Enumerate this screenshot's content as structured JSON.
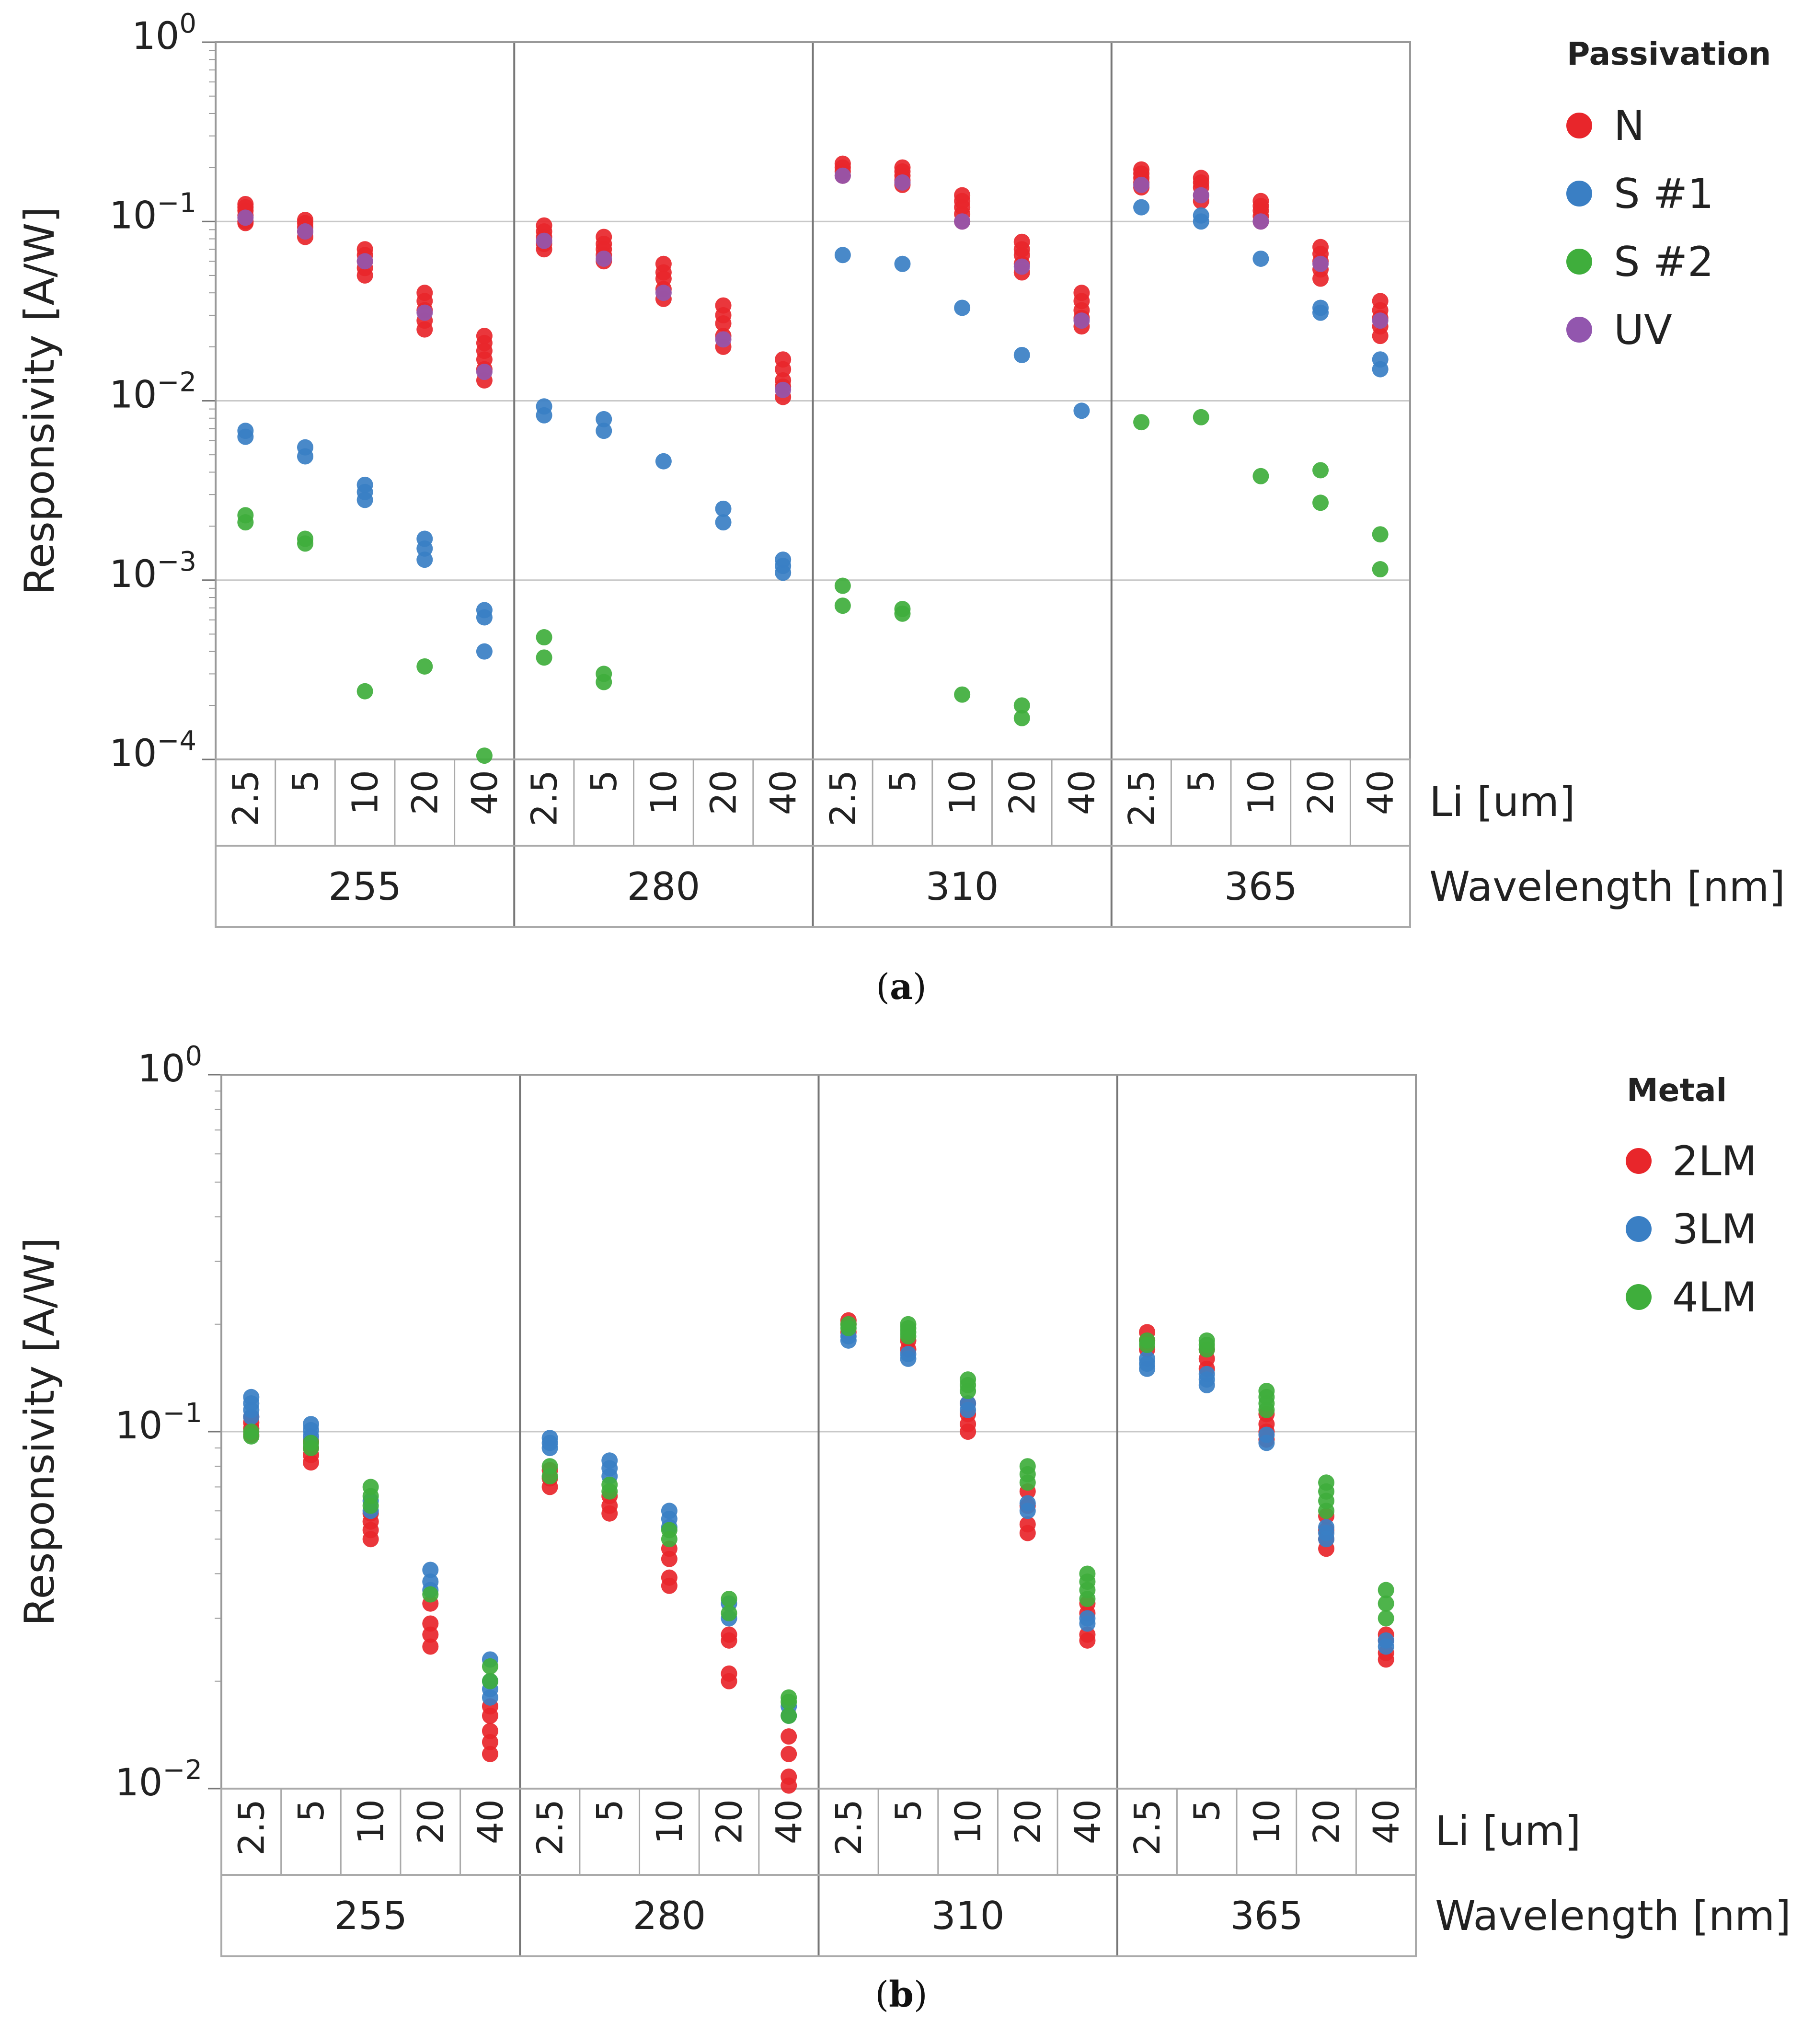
{
  "chart_data": [
    {
      "id": "a",
      "type": "scatter",
      "caption_letter": "a",
      "ylabel": "Responsivity [A/W]",
      "yscale": "log",
      "ylim": [
        0.0001,
        1
      ],
      "ytick_bases": [
        "10",
        "10",
        "10",
        "10",
        "10"
      ],
      "ytick_exps": [
        "0",
        "−1",
        "−2",
        "−3",
        "−4"
      ],
      "ytick_values": [
        1,
        0.1,
        0.01,
        0.001,
        0.0001
      ],
      "grid": true,
      "x_level1_label": "Li [um]",
      "x_level2_label": "Wavelength [nm]",
      "li_values": [
        "2.5",
        "5",
        "10",
        "20",
        "40"
      ],
      "wavelengths": [
        "255",
        "280",
        "310",
        "365"
      ],
      "legend": {
        "title": "Passivation",
        "position": "right"
      },
      "series": [
        {
          "name": "N",
          "color": "#e8262b",
          "values": [
            [
              [
                0.1,
                0.108,
                0.115,
                0.12,
                0.125,
                0.098
              ],
              [
                0.082,
                0.088,
                0.093,
                0.098,
                0.102
              ],
              [
                0.05,
                0.055,
                0.06,
                0.065,
                0.07
              ],
              [
                0.025,
                0.028,
                0.032,
                0.036,
                0.04
              ],
              [
                0.013,
                0.015,
                0.017,
                0.019,
                0.021,
                0.023
              ]
            ],
            [
              [
                0.07,
                0.075,
                0.082,
                0.088,
                0.095
              ],
              [
                0.06,
                0.065,
                0.07,
                0.075,
                0.082
              ],
              [
                0.037,
                0.042,
                0.048,
                0.052,
                0.058
              ],
              [
                0.02,
                0.023,
                0.027,
                0.03,
                0.034
              ],
              [
                0.0105,
                0.012,
                0.013,
                0.015,
                0.017
              ]
            ],
            [
              [
                0.18,
                0.19,
                0.2,
                0.21
              ],
              [
                0.16,
                0.17,
                0.18,
                0.19,
                0.2
              ],
              [
                0.1,
                0.11,
                0.12,
                0.13,
                0.14
              ],
              [
                0.052,
                0.058,
                0.065,
                0.07,
                0.077
              ],
              [
                0.026,
                0.029,
                0.032,
                0.036,
                0.04
              ]
            ],
            [
              [
                0.155,
                0.165,
                0.175,
                0.185,
                0.195
              ],
              [
                0.13,
                0.14,
                0.155,
                0.165,
                0.175
              ],
              [
                0.1,
                0.107,
                0.115,
                0.122,
                0.13
              ],
              [
                0.048,
                0.054,
                0.06,
                0.066,
                0.072
              ],
              [
                0.023,
                0.026,
                0.029,
                0.032,
                0.036
              ]
            ]
          ]
        },
        {
          "name": "S #1",
          "color": "#3a7fc4",
          "values": [
            [
              [
                0.0063,
                0.0068
              ],
              [
                0.0049,
                0.0055
              ],
              [
                0.0028,
                0.0031,
                0.0034
              ],
              [
                0.0013,
                0.0015,
                0.0017
              ],
              [
                0.0004,
                0.00062,
                0.00068
              ]
            ],
            [
              [
                0.0083,
                0.0093
              ],
              [
                0.0068,
                0.0079
              ],
              [
                0.0046
              ],
              [
                0.0021,
                0.0025
              ],
              [
                0.0011,
                0.0012,
                0.0013
              ]
            ],
            [
              [
                0.065
              ],
              [
                0.058
              ],
              [
                0.033
              ],
              [
                0.018
              ],
              [
                0.0088
              ]
            ],
            [
              [
                0.12
              ],
              [
                0.1,
                0.108
              ],
              [
                0.062
              ],
              [
                0.031,
                0.033
              ],
              [
                0.015,
                0.017
              ]
            ]
          ]
        },
        {
          "name": "S #2",
          "color": "#3fae3c",
          "values": [
            [
              [
                0.0021,
                0.0023
              ],
              [
                0.0016,
                0.0017
              ],
              [
                0.00024
              ],
              [
                0.00033
              ],
              [
                0.000105
              ]
            ],
            [
              [
                0.00037,
                0.00048
              ],
              [
                0.00027,
                0.0003
              ],
              [],
              [],
              []
            ],
            [
              [
                0.00072,
                0.00093
              ],
              [
                0.00065,
                0.00069
              ],
              [
                0.00023
              ],
              [
                0.00017,
                0.0002
              ],
              []
            ],
            [
              [
                0.0076
              ],
              [
                0.0081
              ],
              [
                0.0038
              ],
              [
                0.0027,
                0.0041
              ],
              [
                0.00115,
                0.0018
              ]
            ]
          ]
        },
        {
          "name": "UV",
          "color": "#9256ae",
          "values": [
            [
              [
                0.105
              ],
              [
                0.088
              ],
              [
                0.06
              ],
              [
                0.031
              ],
              [
                0.0145
              ]
            ],
            [
              [
                0.078
              ],
              [
                0.062
              ],
              [
                0.04
              ],
              [
                0.022
              ],
              [
                0.0115
              ]
            ],
            [
              [
                0.18
              ],
              [
                0.165
              ],
              [
                0.1
              ],
              [
                0.056
              ],
              [
                0.028
              ]
            ],
            [
              [
                0.16
              ],
              [
                0.14
              ],
              [
                0.1
              ],
              [
                0.058
              ],
              [
                0.028
              ]
            ]
          ]
        }
      ]
    },
    {
      "id": "b",
      "type": "scatter",
      "caption_letter": "b",
      "ylabel": "Responsivity [A/W]",
      "yscale": "log",
      "ylim": [
        0.01,
        1
      ],
      "ytick_bases": [
        "10",
        "10",
        "10"
      ],
      "ytick_exps": [
        "0",
        "−1",
        "−2"
      ],
      "ytick_values": [
        1,
        0.1,
        0.01
      ],
      "grid": true,
      "x_level1_label": "Li [um]",
      "x_level2_label": "Wavelength [nm]",
      "li_values": [
        "2.5",
        "5",
        "10",
        "20",
        "40"
      ],
      "wavelengths": [
        "255",
        "280",
        "310",
        "365"
      ],
      "legend": {
        "title": "Metal",
        "position": "right"
      },
      "series": [
        {
          "name": "2LM",
          "color": "#e8262b",
          "values": [
            [
              [
                0.098,
                0.102,
                0.106,
                0.11
              ],
              [
                0.082,
                0.086,
                0.09,
                0.094
              ],
              [
                0.05,
                0.053,
                0.056,
                0.059
              ],
              [
                0.025,
                0.027,
                0.029,
                0.033
              ],
              [
                0.0125,
                0.0135,
                0.0145,
                0.016,
                0.017
              ]
            ],
            [
              [
                0.07,
                0.074,
                0.078
              ],
              [
                0.059,
                0.062,
                0.066
              ],
              [
                0.037,
                0.039,
                0.044,
                0.047
              ],
              [
                0.02,
                0.021,
                0.026,
                0.027
              ],
              [
                0.0102,
                0.0108,
                0.0125,
                0.014
              ]
            ],
            [
              [
                0.19,
                0.2,
                0.205
              ],
              [
                0.17,
                0.18
              ],
              [
                0.1,
                0.105,
                0.112,
                0.12
              ],
              [
                0.052,
                0.055,
                0.062,
                0.068
              ],
              [
                0.026,
                0.027,
                0.031,
                0.033
              ]
            ],
            [
              [
                0.17,
                0.18,
                0.19
              ],
              [
                0.15,
                0.16,
                0.17
              ],
              [
                0.095,
                0.1,
                0.105,
                0.112
              ],
              [
                0.047,
                0.05,
                0.053,
                0.058
              ],
              [
                0.023,
                0.024,
                0.026,
                0.027
              ]
            ]
          ]
        },
        {
          "name": "3LM",
          "color": "#3a7fc4",
          "values": [
            [
              [
                0.11,
                0.115,
                0.12,
                0.125
              ],
              [
                0.097,
                0.101,
                0.105
              ],
              [
                0.06,
                0.064
              ],
              [
                0.036,
                0.038,
                0.041
              ],
              [
                0.018,
                0.019,
                0.02,
                0.023
              ]
            ],
            [
              [
                0.09,
                0.093,
                0.096
              ],
              [
                0.075,
                0.079,
                0.083
              ],
              [
                0.054,
                0.057,
                0.06
              ],
              [
                0.03,
                0.033
              ],
              [
                0.016,
                0.017
              ]
            ],
            [
              [
                0.18,
                0.185
              ],
              [
                0.16,
                0.165
              ],
              [
                0.115,
                0.12
              ],
              [
                0.06,
                0.063
              ],
              [
                0.029,
                0.03
              ]
            ],
            [
              [
                0.15,
                0.155,
                0.16
              ],
              [
                0.135,
                0.14,
                0.145
              ],
              [
                0.093,
                0.098
              ],
              [
                0.05,
                0.052,
                0.054
              ],
              [
                0.025,
                0.026
              ]
            ]
          ]
        },
        {
          "name": "4LM",
          "color": "#3fae3c",
          "values": [
            [
              [
                0.097,
                0.1
              ],
              [
                0.09,
                0.093
              ],
              [
                0.062,
                0.066,
                0.07
              ],
              [
                0.035
              ],
              [
                0.02,
                0.022
              ]
            ],
            [
              [
                0.075,
                0.08
              ],
              [
                0.068,
                0.071
              ],
              [
                0.05,
                0.053
              ],
              [
                0.031,
                0.034
              ],
              [
                0.016,
                0.0175,
                0.018
              ]
            ],
            [
              [
                0.195,
                0.2
              ],
              [
                0.185,
                0.19,
                0.195,
                0.2
              ],
              [
                0.13,
                0.135,
                0.14
              ],
              [
                0.072,
                0.076,
                0.08
              ],
              [
                0.034,
                0.036,
                0.038,
                0.04
              ]
            ],
            [
              [
                0.175,
                0.18
              ],
              [
                0.17,
                0.175,
                0.18
              ],
              [
                0.115,
                0.12,
                0.125,
                0.13
              ],
              [
                0.06,
                0.064,
                0.068,
                0.072
              ],
              [
                0.03,
                0.033,
                0.036
              ]
            ]
          ]
        }
      ]
    }
  ]
}
